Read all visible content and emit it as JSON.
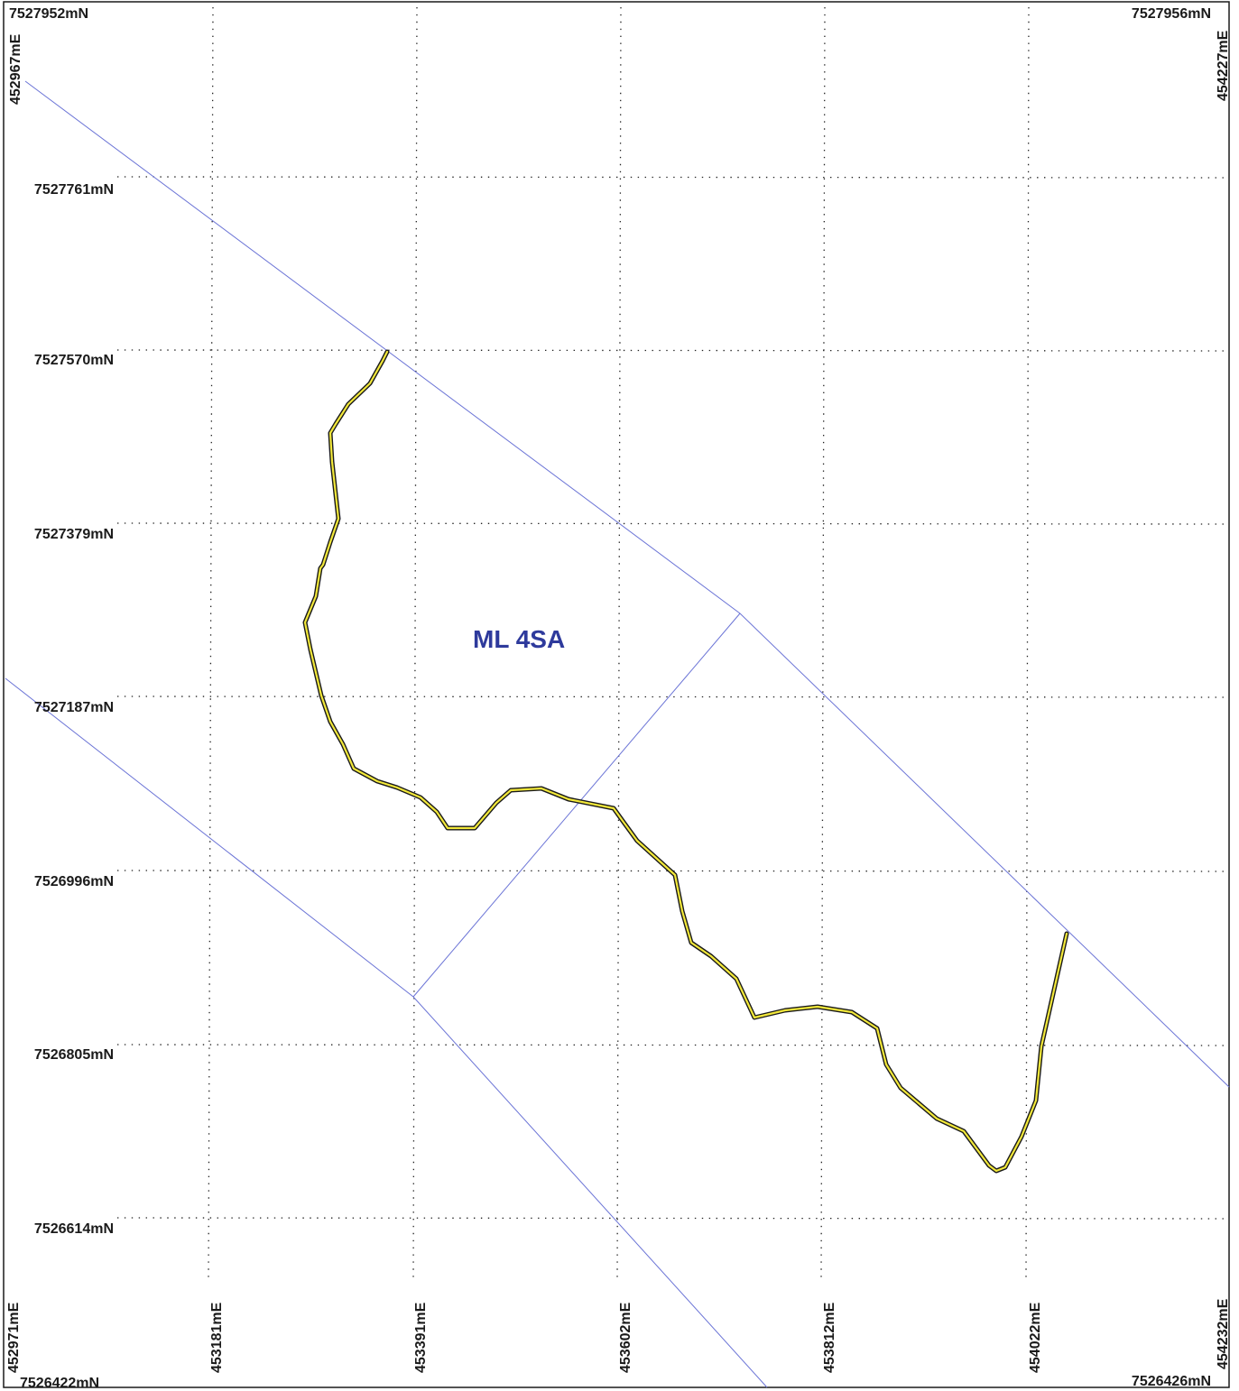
{
  "map": {
    "corners": {
      "top_left_north": "7527952mN",
      "top_left_east": "452967mE",
      "top_right_north": "7527956mN",
      "top_right_east": "454227mE",
      "bottom_left_north": "7526422mN",
      "bottom_left_east": "452971mE",
      "bottom_right_north": "7526426mN",
      "bottom_right_east": "454232mE"
    },
    "northing_labels": [
      "7527761mN",
      "7527570mN",
      "7527379mN",
      "7527187mN",
      "7526996mN",
      "7526805mN",
      "7526614mN"
    ],
    "easting_labels": [
      "453181mE",
      "453391mE",
      "453602mE",
      "453812mE",
      "454022mE"
    ],
    "area_label": "ML 4SA",
    "colors": {
      "lease_boundary": "#6b74d6",
      "river_fill": "#f2e83a",
      "river_edge": "#1a1a1a",
      "label": "#2e3a9c"
    }
  }
}
